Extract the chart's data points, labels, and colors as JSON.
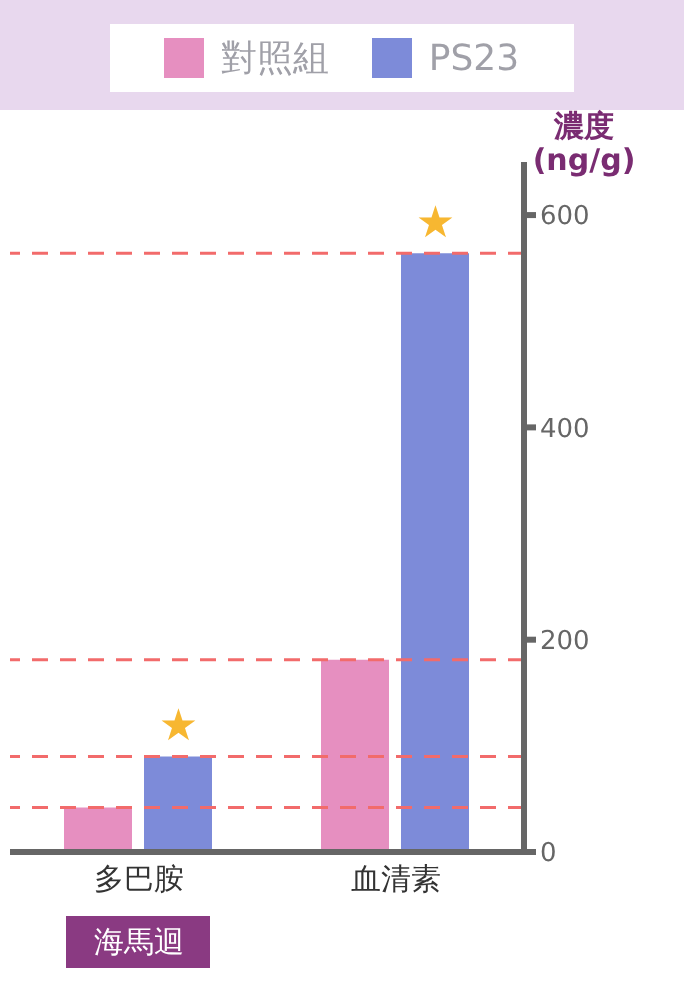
{
  "chart_data": {
    "type": "bar",
    "ylabel": "濃度 (ng/g)",
    "categories": [
      "多巴胺",
      "血清素"
    ],
    "series": [
      {
        "name": "對照組",
        "color": "#e68fc0",
        "values": [
          42,
          181
        ]
      },
      {
        "name": "PS23",
        "color": "#7d8bd9",
        "values": [
          90,
          564
        ]
      }
    ],
    "ylim": [
      0,
      650
    ],
    "yticks": [
      0,
      200,
      400,
      600
    ],
    "legend": "top",
    "ref_lines": [
      {
        "axis": "y",
        "value": 42,
        "color": "#f26b6b",
        "line_style": "dashed"
      },
      {
        "axis": "y",
        "value": 90,
        "color": "#f26b6b",
        "line_style": "dashed"
      },
      {
        "axis": "y",
        "value": 181,
        "color": "#f26b6b",
        "line_style": "dashed"
      },
      {
        "axis": "y",
        "value": 564,
        "color": "#f26b6b",
        "line_style": "dashed"
      }
    ],
    "annotations": [
      {
        "text": "★",
        "x": "多巴胺",
        "y": 90
      },
      {
        "text": "★",
        "x": "血清素",
        "y": 564
      },
      "海馬迴"
    ]
  }
}
